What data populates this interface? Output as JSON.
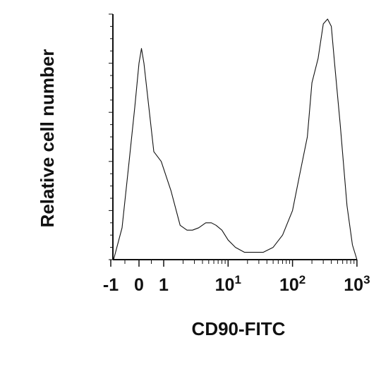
{
  "chart_data": {
    "type": "area",
    "xlabel": "CD90-FITC",
    "ylabel": "Relative cell number",
    "x_scale": "biexponential",
    "xlim": [
      -1,
      1000
    ],
    "ylim": [
      0,
      1
    ],
    "grid": false,
    "legend": "none",
    "x_ticks": [
      {
        "value": -1,
        "label": "-1"
      },
      {
        "value": 0,
        "label": "0"
      },
      {
        "value": 1,
        "label": "1"
      },
      {
        "value": 10,
        "label": "10",
        "sup": "1"
      },
      {
        "value": 100,
        "label": "10",
        "sup": "2"
      },
      {
        "value": 1000,
        "label": "10",
        "sup": "3"
      }
    ],
    "series": [
      {
        "values": [
          [
            -0.9,
            0.0
          ],
          [
            -0.6,
            0.13
          ],
          [
            -0.35,
            0.4
          ],
          [
            -0.15,
            0.62
          ],
          [
            0.0,
            0.8
          ],
          [
            0.1,
            0.86
          ],
          [
            0.2,
            0.8
          ],
          [
            0.4,
            0.62
          ],
          [
            0.6,
            0.44
          ],
          [
            0.9,
            0.4
          ],
          [
            1.3,
            0.28
          ],
          [
            1.8,
            0.14
          ],
          [
            2.3,
            0.12
          ],
          [
            2.8,
            0.12
          ],
          [
            3.5,
            0.13
          ],
          [
            4.5,
            0.15
          ],
          [
            5.5,
            0.15
          ],
          [
            6.5,
            0.14
          ],
          [
            8,
            0.12
          ],
          [
            10,
            0.08
          ],
          [
            13,
            0.05
          ],
          [
            18,
            0.03
          ],
          [
            25,
            0.03
          ],
          [
            35,
            0.03
          ],
          [
            50,
            0.05
          ],
          [
            70,
            0.1
          ],
          [
            100,
            0.2
          ],
          [
            130,
            0.35
          ],
          [
            170,
            0.5
          ],
          [
            200,
            0.72
          ],
          [
            250,
            0.82
          ],
          [
            300,
            0.96
          ],
          [
            350,
            0.98
          ],
          [
            400,
            0.95
          ],
          [
            450,
            0.8
          ],
          [
            550,
            0.55
          ],
          [
            700,
            0.22
          ],
          [
            850,
            0.06
          ],
          [
            1000,
            0.0
          ]
        ]
      }
    ]
  }
}
